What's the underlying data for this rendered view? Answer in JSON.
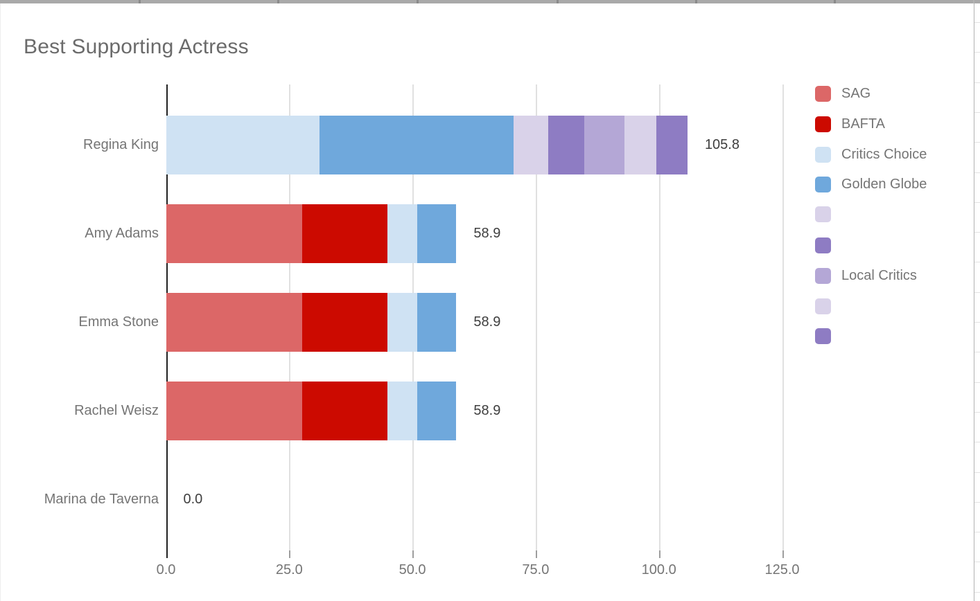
{
  "chart_data": {
    "type": "bar",
    "orientation": "horizontal",
    "stacked": true,
    "title": "Best Supporting Actress",
    "categories": [
      "Regina King",
      "Amy Adams",
      "Emma Stone",
      "Rachel Weisz",
      "Marina de Taverna"
    ],
    "totals": [
      105.8,
      58.9,
      58.9,
      58.9,
      0.0
    ],
    "totals_labels": [
      "105.8",
      "58.9",
      "58.9",
      "58.9",
      "0.0"
    ],
    "series": [
      {
        "name": "SAG",
        "color": "#DC6767",
        "values": [
          0,
          27.6,
          27.6,
          27.6,
          0
        ]
      },
      {
        "name": "BAFTA",
        "color": "#CC0A00",
        "values": [
          0,
          17.3,
          17.3,
          17.3,
          0
        ]
      },
      {
        "name": "Critics Choice",
        "color": "#CFE2F3",
        "values": [
          31.1,
          6.1,
          6.1,
          6.1,
          0
        ]
      },
      {
        "name": "Golden Globe",
        "color": "#6FA8DC",
        "values": [
          39.4,
          7.9,
          7.9,
          7.9,
          0
        ]
      },
      {
        "name": "",
        "color": "#D9D2E9",
        "values": [
          7.0,
          0,
          0,
          0,
          0
        ]
      },
      {
        "name": "",
        "color": "#8E7CC3",
        "values": [
          7.3,
          0,
          0,
          0,
          0
        ]
      },
      {
        "name": "Local Critics",
        "color": "#B4A7D6",
        "values": [
          8.2,
          0,
          0,
          0,
          0
        ]
      },
      {
        "name": "",
        "color": "#D9D2E9",
        "values": [
          6.5,
          0,
          0,
          0,
          0
        ]
      },
      {
        "name": "",
        "color": "#8E7CC3",
        "values": [
          6.3,
          0,
          0,
          0,
          0
        ]
      }
    ],
    "legend": [
      {
        "label": "SAG",
        "color": "#DC6767"
      },
      {
        "label": "BAFTA",
        "color": "#CC0A00"
      },
      {
        "label": "Critics Choice",
        "color": "#CFE2F3"
      },
      {
        "label": "Golden Globe",
        "color": "#6FA8DC"
      },
      {
        "label": "",
        "color": "#D9D2E9"
      },
      {
        "label": "",
        "color": "#8E7CC3"
      },
      {
        "label": "Local Critics",
        "color": "#B4A7D6"
      },
      {
        "label": "",
        "color": "#D9D2E9"
      },
      {
        "label": "",
        "color": "#8E7CC3"
      }
    ],
    "legend_position": "right",
    "x_axis": {
      "ticks": [
        0,
        25,
        50,
        75,
        100,
        125
      ],
      "tick_labels": [
        "0.0",
        "25.0",
        "50.0",
        "75.0",
        "100.0",
        "125.0"
      ],
      "range": [
        0,
        131
      ]
    },
    "grid": "vertical-only"
  }
}
